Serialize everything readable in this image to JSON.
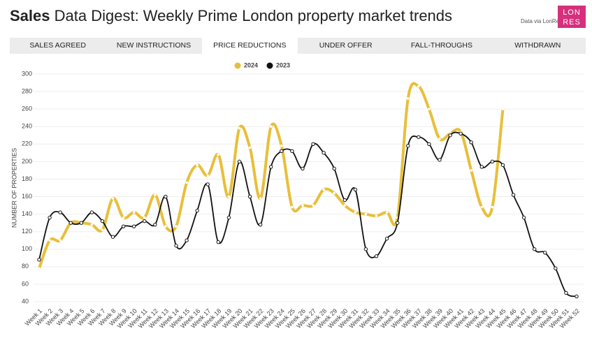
{
  "header": {
    "title_bold": "Sales",
    "title": "Data Digest: Weekly Prime London property market trends",
    "source": "Data via LonRes",
    "logo": [
      "LON",
      "RES"
    ]
  },
  "tabs": [
    "SALES AGREED",
    "NEW INSTRUCTIONS",
    "PRICE REDUCTIONS",
    "UNDER OFFER",
    "FALL-THROUGHS",
    "WITHDRAWN"
  ],
  "active_tab": 2,
  "chart_data": {
    "type": "line",
    "y_label": "NUMBER OF PROPERTIES",
    "categories": [
      "Week 1",
      "Week 2",
      "Week 3",
      "Week 4",
      "Week 5",
      "Week 6",
      "Week 7",
      "Week 8",
      "Week 9",
      "Week 10",
      "Week 11",
      "Week 12",
      "Week 13",
      "Week 14",
      "Week 15",
      "Week 16",
      "Week 17",
      "Week 18",
      "Week 19",
      "Week 20",
      "Week 21",
      "Week 22",
      "Week 23",
      "Week 24",
      "Week 25",
      "Week 26",
      "Week 27",
      "Week 28",
      "Week 29",
      "Week 30",
      "Week 31",
      "Week 32",
      "Week 33",
      "Week 34",
      "Week 35",
      "Week 36",
      "Week 37",
      "Week 38",
      "Week 39",
      "Week 40",
      "Week 41",
      "Week 42",
      "Week 43",
      "Week 44",
      "Week 45",
      "Week 46",
      "Week 47",
      "Week 48",
      "Week 49",
      "Week 50",
      "Week 51",
      "Week 52"
    ],
    "series": [
      {
        "name": "2024",
        "color": "#e8bf3a",
        "values": [
          78,
          110,
          110,
          130,
          130,
          128,
          122,
          158,
          136,
          142,
          136,
          162,
          126,
          126,
          176,
          196,
          184,
          208,
          160,
          238,
          216,
          158,
          240,
          218,
          148,
          150,
          150,
          168,
          164,
          150,
          142,
          140,
          138,
          142,
          136,
          272,
          286,
          260,
          226,
          232,
          234,
          190,
          148,
          148,
          260,
          null,
          null,
          null,
          null,
          null,
          null,
          null
        ]
      },
      {
        "name": "2023",
        "color": "#111111",
        "values": [
          88,
          136,
          142,
          130,
          130,
          142,
          132,
          114,
          126,
          126,
          132,
          128,
          160,
          104,
          110,
          144,
          174,
          108,
          136,
          200,
          160,
          128,
          194,
          212,
          212,
          192,
          220,
          210,
          192,
          156,
          168,
          100,
          92,
          112,
          130,
          218,
          228,
          220,
          202,
          230,
          232,
          222,
          194,
          200,
          196,
          162,
          136,
          100,
          96,
          78,
          50,
          46
        ]
      }
    ],
    "ylim": [
      40,
      300
    ],
    "yticks": [
      40,
      60,
      80,
      100,
      120,
      140,
      160,
      180,
      200,
      220,
      240,
      260,
      280,
      300
    ],
    "grid": true,
    "legend": "top"
  }
}
